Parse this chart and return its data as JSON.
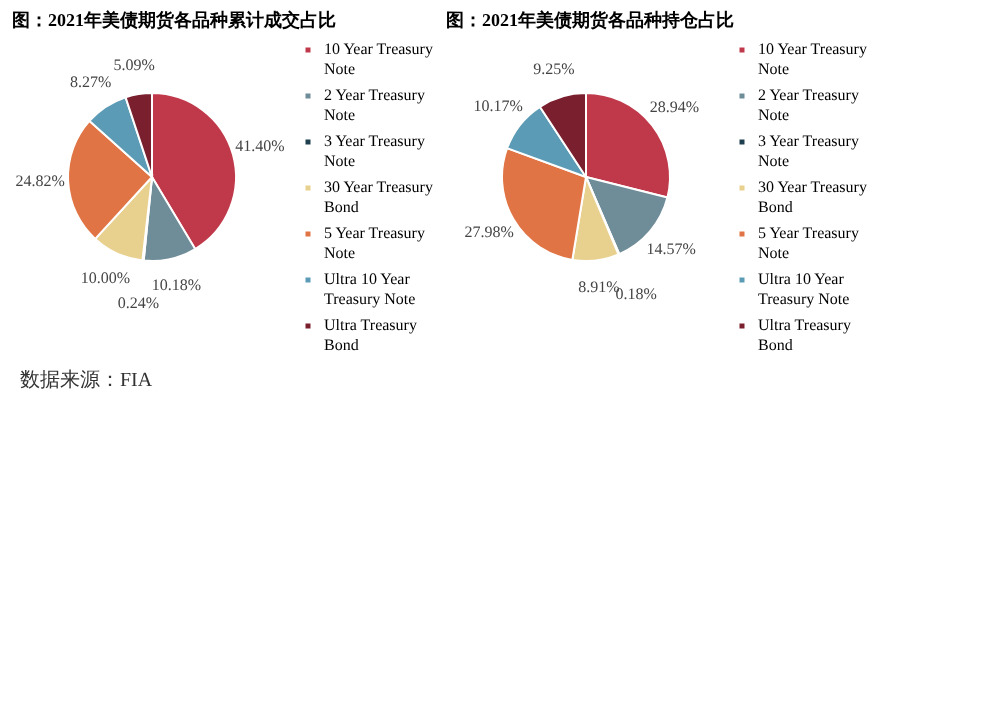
{
  "chart_data": [
    {
      "type": "pie",
      "title": "图：2021年美债期货各品种累计成交占比",
      "categories": [
        "10 Year Treasury Note",
        "2 Year Treasury Note",
        "3 Year Treasury Note",
        "30 Year Treasury Bond",
        "5 Year Treasury Note",
        "Ultra 10 Year Treasury Note",
        "Ultra Treasury Bond"
      ],
      "values": [
        41.4,
        10.18,
        0.24,
        10.0,
        24.82,
        8.27,
        5.09
      ],
      "colors": [
        "#c0394a",
        "#6f8c99",
        "#1f3f4f",
        "#e8d08e",
        "#e07444",
        "#5b9bb5",
        "#7a1f2e"
      ],
      "value_labels": [
        "41.40%",
        "10.18%",
        "0.24%",
        "10.00%",
        "24.82%",
        "8.27%",
        "5.09%"
      ],
      "legend": "right",
      "annotations": [
        "数据来源：FIA"
      ]
    },
    {
      "type": "pie",
      "title": "图：2021年美债期货各品种持仓占比",
      "categories": [
        "10 Year Treasury Note",
        "2 Year Treasury Note",
        "3 Year Treasury Note",
        "30 Year Treasury Bond",
        "5 Year Treasury Note",
        "Ultra 10 Year Treasury Note",
        "Ultra Treasury Bond"
      ],
      "values": [
        28.94,
        14.57,
        0.18,
        8.91,
        27.98,
        10.17,
        9.25
      ],
      "colors": [
        "#c0394a",
        "#6f8c99",
        "#1f3f4f",
        "#e8d08e",
        "#e07444",
        "#5b9bb5",
        "#7a1f2e"
      ],
      "value_labels": [
        "28.94%",
        "14.57%",
        "0.18%",
        "8.91%",
        "27.98%",
        "10.17%",
        "9.25%"
      ],
      "legend": "right"
    }
  ]
}
